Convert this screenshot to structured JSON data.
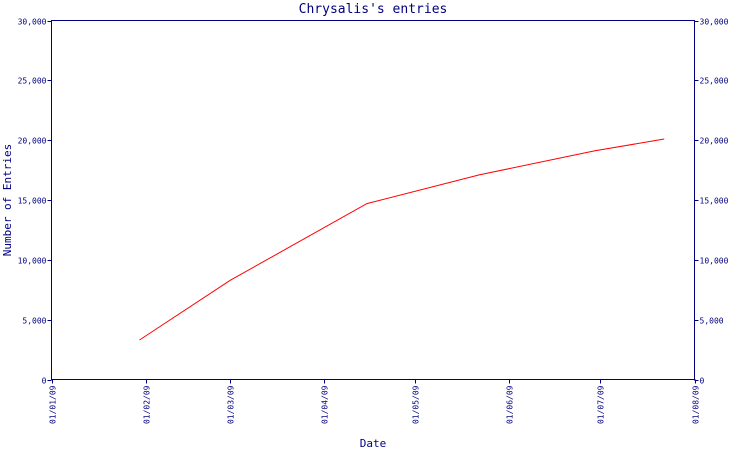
{
  "chart_data": {
    "type": "line",
    "title": "Chrysalis's entries",
    "xlabel": "Date",
    "ylabel": "Number of Entries",
    "x_tick_labels": [
      "01/01/09",
      "01/02/09",
      "01/03/09",
      "01/04/09",
      "01/05/09",
      "01/06/09",
      "01/07/09",
      "01/08/09"
    ],
    "y_tick_labels": [
      "0",
      "5,000",
      "10,000",
      "15,000",
      "20,000",
      "25,000",
      "30,000"
    ],
    "y_ticks": [
      0,
      5000,
      10000,
      15000,
      20000,
      25000,
      30000
    ],
    "xlim": [
      "2009-01-01",
      "2009-08-01"
    ],
    "ylim": [
      0,
      30000
    ],
    "series": [
      {
        "points": [
          {
            "x": "2009-01-30",
            "y": 3300
          },
          {
            "x": "2009-03-01",
            "y": 8300
          },
          {
            "x": "2009-04-15",
            "y": 14700
          },
          {
            "x": "2009-05-22",
            "y": 17100
          },
          {
            "x": "2009-06-29",
            "y": 19100
          },
          {
            "x": "2009-07-22",
            "y": 20100
          }
        ]
      }
    ],
    "grid": false,
    "colors": {
      "axis": "#000080",
      "line": "#ff0000",
      "text": "#000080"
    }
  }
}
